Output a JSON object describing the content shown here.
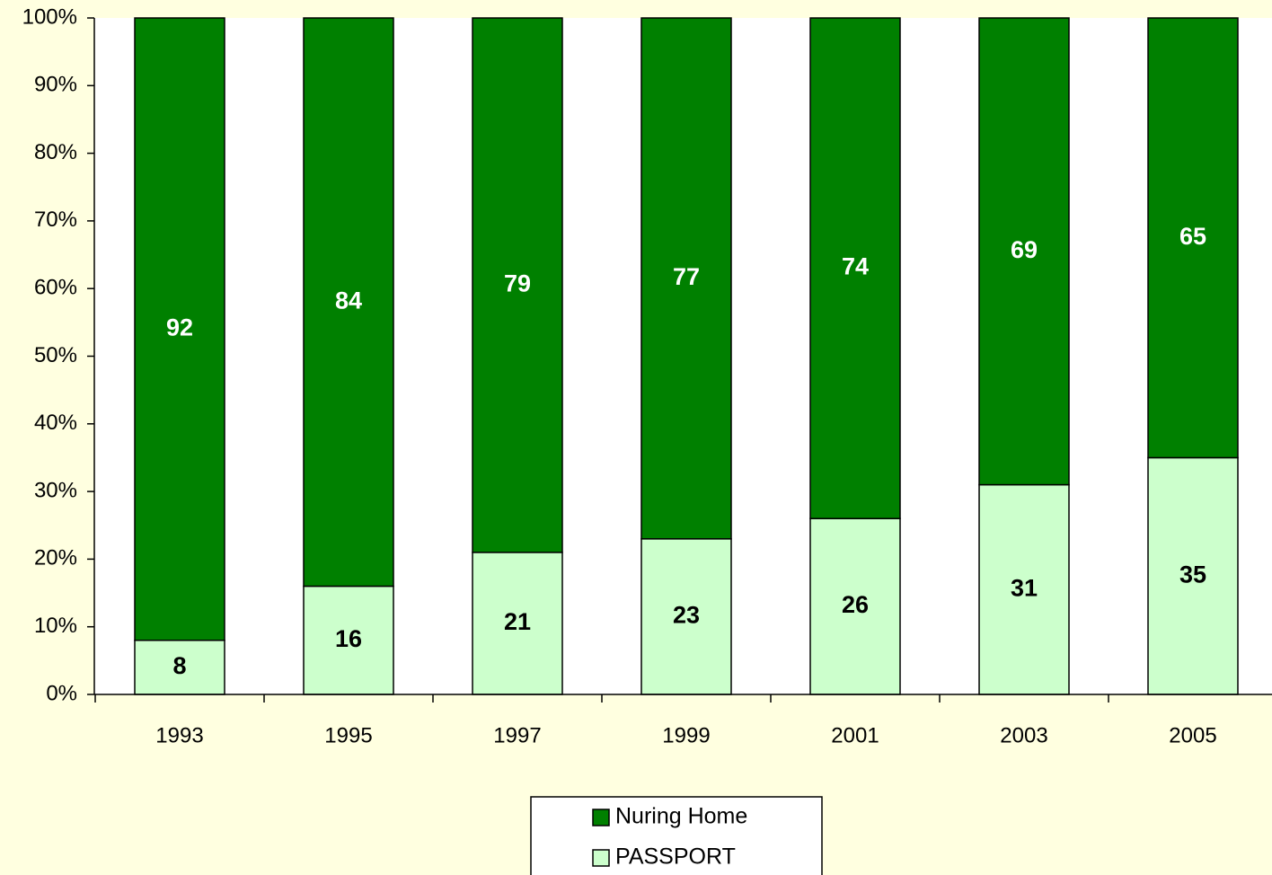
{
  "chart_data": {
    "type": "stacked_bar",
    "categories": [
      "1993",
      "1995",
      "1997",
      "1999",
      "2001",
      "2003",
      "2005"
    ],
    "series": [
      {
        "name": "Nuring Home",
        "color": "#008000",
        "values": [
          92,
          84,
          79,
          77,
          74,
          69,
          65
        ]
      },
      {
        "name": "PASSPORT",
        "color": "#ccffcc",
        "values": [
          8,
          16,
          21,
          23,
          26,
          31,
          35
        ]
      }
    ],
    "ylim": [
      0,
      100
    ],
    "yticks": [
      {
        "value": 0,
        "label": "0%"
      },
      {
        "value": 10,
        "label": "10%"
      },
      {
        "value": 20,
        "label": "20%"
      },
      {
        "value": 30,
        "label": "30%"
      },
      {
        "value": 40,
        "label": "40%"
      },
      {
        "value": 50,
        "label": "50%"
      },
      {
        "value": 60,
        "label": "60%"
      },
      {
        "value": 70,
        "label": "70%"
      },
      {
        "value": 80,
        "label": "80%"
      },
      {
        "value": 90,
        "label": "90%"
      },
      {
        "value": 100,
        "label": "100%"
      }
    ],
    "legend": "bottom"
  }
}
